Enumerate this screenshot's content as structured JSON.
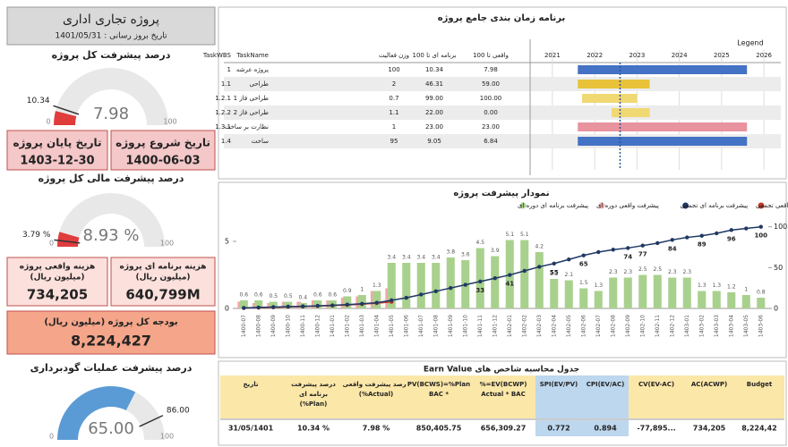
{
  "sidebar": {
    "title": "پروژه تجاری اداری",
    "update_date": "تاریخ بروز رسانی : 1401/05/31",
    "gauges": [
      {
        "title": "درصد پیشرفت کل پروژه",
        "value": 7.98,
        "target": 10.34,
        "min": 0,
        "max": 100,
        "color": "#e03c3c"
      },
      {
        "title": "درصد پیشرفت مالی کل پروژه",
        "value": 8.93,
        "value_label": "8.93 %",
        "target": 3.79,
        "target_label": "3.79 %",
        "min": 0,
        "max": 100,
        "color": "#e03c3c"
      },
      {
        "title": "درصد پیشرفت عملیات گودبرداری",
        "value": 65,
        "value_label": "65.00",
        "target": 86,
        "target_label": "86.00",
        "min": 0,
        "max": 100,
        "color": "#5b9bd5"
      }
    ],
    "date_cards": [
      {
        "label": "تاریخ پایان پروژه",
        "value": "1403-12-30"
      },
      {
        "label": "تاریخ شروع پروژه",
        "value": "1400-06-03"
      }
    ],
    "cost_cards": [
      {
        "label": "هزینه واقعی پروژه",
        "unit": "(میلیون ریال)",
        "value": "734,205"
      },
      {
        "label": "هزینه برنامه ای پروژه",
        "unit": "(میلیون ریال)",
        "value": "640,799M"
      }
    ],
    "budget_card": {
      "label": "بودجه کل پروژه (میلیون ریال)",
      "value": "8,224,427"
    }
  },
  "gantt": {
    "title": "برنامه زمان بندی جامع پروژه",
    "legend_label": "Legend",
    "columns": [
      "TaskWBS",
      "TaskName",
      "وزن فعالیت",
      "برنامه ای تا 100",
      "واقعی تا 100"
    ],
    "rows": [
      {
        "cells": [
          "1",
          "پروژه عرشه",
          "100",
          "10.34",
          "7.98"
        ],
        "start": 2021.6,
        "end": 2025.6,
        "color": "#4472c4"
      },
      {
        "cells": [
          "1.1",
          "طراحی",
          "2",
          "46.31",
          "59.00"
        ],
        "start": 2021.6,
        "end": 2023.3,
        "color": "#e8c33a"
      },
      {
        "cells": [
          "1.2.1",
          "طراحی فاز 1",
          "0.7",
          "99.00",
          "100.00"
        ],
        "start": 2021.7,
        "end": 2023.0,
        "color": "#f0d872"
      },
      {
        "cells": [
          "1.2.2",
          "طراحی فاز 2",
          "1.1",
          "22.00",
          "0.00"
        ],
        "start": 2022.4,
        "end": 2023.3,
        "color": "#f0d872"
      },
      {
        "cells": [
          "1.3.1",
          "نظارت بر ساخت",
          "1",
          "23.00",
          "23.00"
        ],
        "start": 2021.6,
        "end": 2025.6,
        "color": "#e8939e"
      },
      {
        "cells": [
          "1.4",
          "ساخت",
          "95",
          "9.05",
          "6.84"
        ],
        "start": 2021.6,
        "end": 2025.6,
        "color": "#4472c4"
      }
    ],
    "xlim": [
      2020.6,
      2026.4
    ],
    "xticks": [
      2021,
      2022,
      2023,
      2024,
      2025,
      2026
    ],
    "today": 2022.6
  },
  "progress_chart": {
    "type": "combo",
    "title": "نمودار پیشرفت پروژه",
    "categories": [
      "1400-07",
      "1400-08",
      "1400-09",
      "1400-10",
      "1400-11",
      "1400-12",
      "1401-01",
      "1401-02",
      "1401-03",
      "1401-04",
      "1401-05",
      "1401-06",
      "1401-07",
      "1401-08",
      "1401-09",
      "1401-10",
      "1401-11",
      "1401-12",
      "1402-01",
      "1402-02",
      "1402-03",
      "1402-04",
      "1402-05",
      "1402-06",
      "1402-07",
      "1402-08",
      "1402-09",
      "1402-10",
      "1402-11",
      "1402-12",
      "1403-01",
      "1403-02",
      "1403-03",
      "1403-04",
      "1403-05",
      "1403-06"
    ],
    "ylim": [
      0,
      7
    ],
    "yticks": [
      0,
      5
    ],
    "y2lim": [
      0,
      115
    ],
    "y2ticks": [
      0,
      50,
      100
    ],
    "series": [
      {
        "name": "پیشرفت واقعی تجمعی",
        "color": "#c0392b",
        "type": "line",
        "axis": "y2",
        "values": [
          0.5,
          0.9,
          1.3,
          1.8,
          2.3,
          2.9,
          3.5,
          4.3,
          5.2,
          6.5,
          8.0,
          null,
          null,
          null,
          null,
          null,
          null,
          null,
          null,
          null,
          null,
          null,
          null,
          null,
          null,
          null,
          null,
          null,
          null,
          null,
          null,
          null,
          null,
          null,
          null,
          null
        ]
      },
      {
        "name": "پیشرفت برنامه ای تجمعی",
        "color": "#1f3864",
        "type": "line",
        "axis": "y2",
        "values": [
          0.6,
          1.2,
          1.7,
          2.2,
          2.6,
          3.2,
          3.8,
          4.7,
          5.7,
          7,
          10,
          13,
          17,
          21,
          25,
          29,
          33,
          37,
          41,
          46,
          51,
          55,
          60,
          65,
          69,
          72,
          74,
          77,
          80,
          84,
          87,
          89,
          92,
          96,
          98,
          100
        ],
        "value_labels": [
          null,
          null,
          null,
          null,
          null,
          null,
          null,
          null,
          null,
          null,
          null,
          null,
          null,
          null,
          null,
          null,
          "33",
          null,
          "41",
          null,
          null,
          "55",
          null,
          "65",
          null,
          null,
          "74",
          "77",
          null,
          "84",
          null,
          "89",
          null,
          "96",
          null,
          "100"
        ]
      },
      {
        "name": "پیشرفت واقعی دوره ای",
        "color": "#f2a7a7",
        "type": "bar",
        "values": [
          0.5,
          0.4,
          0.4,
          0.5,
          0.5,
          0.6,
          0.6,
          0.8,
          0.9,
          1.3,
          1.5,
          null,
          null,
          null,
          null,
          null,
          null,
          null,
          null,
          null,
          null,
          null,
          null,
          null,
          null,
          null,
          null,
          null,
          null,
          null,
          null,
          null,
          null,
          null,
          null,
          null
        ]
      },
      {
        "name": "پیشرفت برنامه ای دوره ای",
        "color": "#a9d18e",
        "type": "bar",
        "values": [
          0.6,
          0.6,
          0.5,
          0.5,
          0.4,
          0.6,
          0.6,
          0.9,
          1.0,
          1.3,
          3.4,
          3.4,
          3.4,
          3.4,
          3.8,
          3.6,
          4.5,
          3.9,
          5.1,
          5.1,
          4.2,
          2.2,
          2.1,
          1.5,
          1.3,
          2.3,
          2.3,
          2.5,
          2.5,
          2.3,
          2.3,
          1.3,
          1.3,
          1.2,
          1.0,
          0.8
        ]
      }
    ]
  },
  "ev_table": {
    "title": "جدول محاسبه شاخص های Earn Value",
    "headers": [
      [
        "تاریخ"
      ],
      [
        "درصد پیشرفت",
        "برنامه ای",
        "(Plan%)"
      ],
      [
        "درصد پیشرفت واقعی",
        "(Actual%)"
      ],
      [
        "PV(BCWS)=%Plan",
        "* BAC"
      ],
      [
        "EV(BCWP)=%",
        "Actual * BAC"
      ],
      [
        "SPI(EV/PV)"
      ],
      [
        "CPI(EV/AC)"
      ],
      [
        "CV(EV-AC)"
      ],
      [
        "AC(ACWP)"
      ],
      [
        "Budget"
      ]
    ],
    "highlight": [
      5,
      6
    ],
    "rows": [
      [
        "31/05/1401",
        "10.34 %",
        "7.98 %",
        "850,405.75",
        "656,309.27",
        "0.772",
        "0.894",
        "-77,895...",
        "734,205",
        "8,224,42"
      ]
    ]
  }
}
